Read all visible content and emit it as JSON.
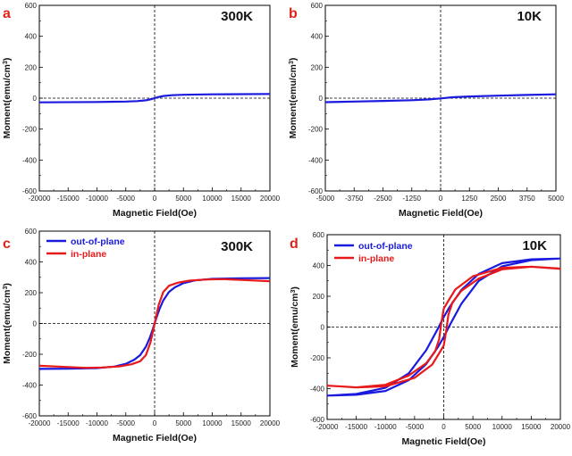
{
  "chart_data": [
    {
      "panel": "a",
      "type": "line",
      "annotation": "300K",
      "xlabel": "Magnetic Field(Oe)",
      "ylabel": "Moment(emu/cm3)",
      "xlim": [
        -20000,
        20000
      ],
      "ylim": [
        -600,
        600
      ],
      "xticks": [
        -20000,
        -15000,
        -10000,
        -5000,
        0,
        5000,
        10000,
        15000,
        20000
      ],
      "yticks": [
        -600,
        -400,
        -200,
        0,
        200,
        400,
        600
      ],
      "reference_lines": {
        "x": 0,
        "y": 0
      },
      "series": [
        {
          "color": "#1a1adf",
          "x": [
            -20000,
            -10000,
            -5000,
            -3000,
            -1500,
            -500,
            0,
            500,
            1500,
            3000,
            5000,
            10000,
            20000
          ],
          "y": [
            -27,
            -25,
            -22,
            -19,
            -14,
            -6,
            0,
            6,
            14,
            19,
            22,
            25,
            27
          ]
        }
      ]
    },
    {
      "panel": "b",
      "type": "line",
      "annotation": "10K",
      "xlabel": "Magnetic Field(Oe)",
      "ylabel": "Moment(emu/cm3)",
      "xlim": [
        -5000,
        5000
      ],
      "ylim": [
        -600,
        600
      ],
      "xticks": [
        -5000,
        -3750,
        -2500,
        -1250,
        0,
        1250,
        2500,
        3750,
        5000
      ],
      "yticks": [
        -600,
        -400,
        -200,
        0,
        200,
        400,
        600
      ],
      "reference_lines": {
        "x": 0,
        "y": 0
      },
      "series": [
        {
          "color": "#1a1adf",
          "x": [
            -5000,
            -3750,
            -2500,
            -1250,
            -500,
            0,
            500,
            1250,
            2500,
            3750,
            5000
          ],
          "y": [
            -26,
            -22,
            -18,
            -13,
            -8,
            -2,
            6,
            11,
            16,
            21,
            25
          ]
        }
      ]
    },
    {
      "panel": "c",
      "type": "line",
      "annotation": "300K",
      "xlabel": "Magnetic Field(Oe)",
      "ylabel": "Moment(emu/cm3)",
      "xlim": [
        -20000,
        20000
      ],
      "ylim": [
        -600,
        600
      ],
      "xticks": [
        -20000,
        -15000,
        -10000,
        -5000,
        0,
        5000,
        10000,
        15000,
        20000
      ],
      "yticks": [
        -600,
        -400,
        -200,
        0,
        200,
        400,
        600
      ],
      "reference_lines": {
        "x": 0,
        "y": 0
      },
      "legend": "top-left",
      "series": [
        {
          "name": "out-of-plane",
          "color": "#1a1adf",
          "x": [
            -20000,
            -15000,
            -10000,
            -7000,
            -5000,
            -3500,
            -2500,
            -1500,
            -800,
            -300,
            0,
            300,
            800,
            1500,
            2500,
            3500,
            5000,
            7000,
            10000,
            15000,
            20000
          ],
          "y": [
            -295,
            -294,
            -290,
            -280,
            -262,
            -235,
            -205,
            -150,
            -90,
            -35,
            0,
            35,
            90,
            150,
            205,
            235,
            262,
            280,
            290,
            294,
            295
          ]
        },
        {
          "name": "in-plane",
          "color": "#e8191b",
          "x": [
            -20000,
            -15000,
            -12000,
            -9000,
            -6000,
            -4000,
            -2500,
            -1500,
            -700,
            -300,
            0,
            300,
            700,
            1500,
            2500,
            4000,
            6000,
            9000,
            12000,
            15000,
            20000
          ],
          "y": [
            -275,
            -283,
            -288,
            -286,
            -278,
            -265,
            -245,
            -205,
            -120,
            -50,
            0,
            50,
            120,
            205,
            245,
            265,
            278,
            286,
            288,
            283,
            275
          ]
        }
      ]
    },
    {
      "panel": "d",
      "type": "line",
      "annotation": "10K",
      "xlabel": "Magnetic Field(Oe)",
      "ylabel": "Moment(emu/cm3)",
      "xlim": [
        -20000,
        20000
      ],
      "ylim": [
        -600,
        600
      ],
      "xticks": [
        -20000,
        -15000,
        -10000,
        -5000,
        0,
        5000,
        10000,
        15000,
        20000
      ],
      "yticks": [
        -600,
        -400,
        -200,
        0,
        200,
        400,
        600
      ],
      "reference_lines": {
        "x": 0,
        "y": 0
      },
      "legend": "top-left",
      "series": [
        {
          "name": "out-of-plane",
          "color": "#1a1adf",
          "x": [
            20000,
            15000,
            10000,
            6000,
            3000,
            1000,
            0,
            -1000,
            -3000,
            -6000,
            -10000,
            -15000,
            -20000,
            -15000,
            -10000,
            -6000,
            -3000,
            -1000,
            0,
            1000,
            3000,
            6000,
            10000,
            15000,
            20000
          ],
          "y": [
            445,
            440,
            415,
            345,
            240,
            130,
            65,
            -10,
            -150,
            -300,
            -395,
            -435,
            -445,
            -440,
            -415,
            -345,
            -240,
            -130,
            -65,
            10,
            150,
            300,
            395,
            435,
            445
          ]
        },
        {
          "name": "in-plane",
          "color": "#e8191b",
          "x": [
            20000,
            15000,
            10000,
            5000,
            2000,
            700,
            0,
            -400,
            -800,
            -1500,
            -3000,
            -6000,
            -10000,
            -15000,
            -20000,
            -15000,
            -10000,
            -5000,
            -2000,
            -700,
            0,
            400,
            800,
            1500,
            3000,
            6000,
            10000,
            15000,
            20000
          ],
          "y": [
            378,
            392,
            385,
            330,
            245,
            165,
            120,
            30,
            -80,
            -160,
            -235,
            -315,
            -375,
            -392,
            -380,
            -392,
            -385,
            -330,
            -245,
            -165,
            -120,
            -30,
            80,
            160,
            235,
            315,
            375,
            392,
            380
          ]
        }
      ]
    }
  ]
}
